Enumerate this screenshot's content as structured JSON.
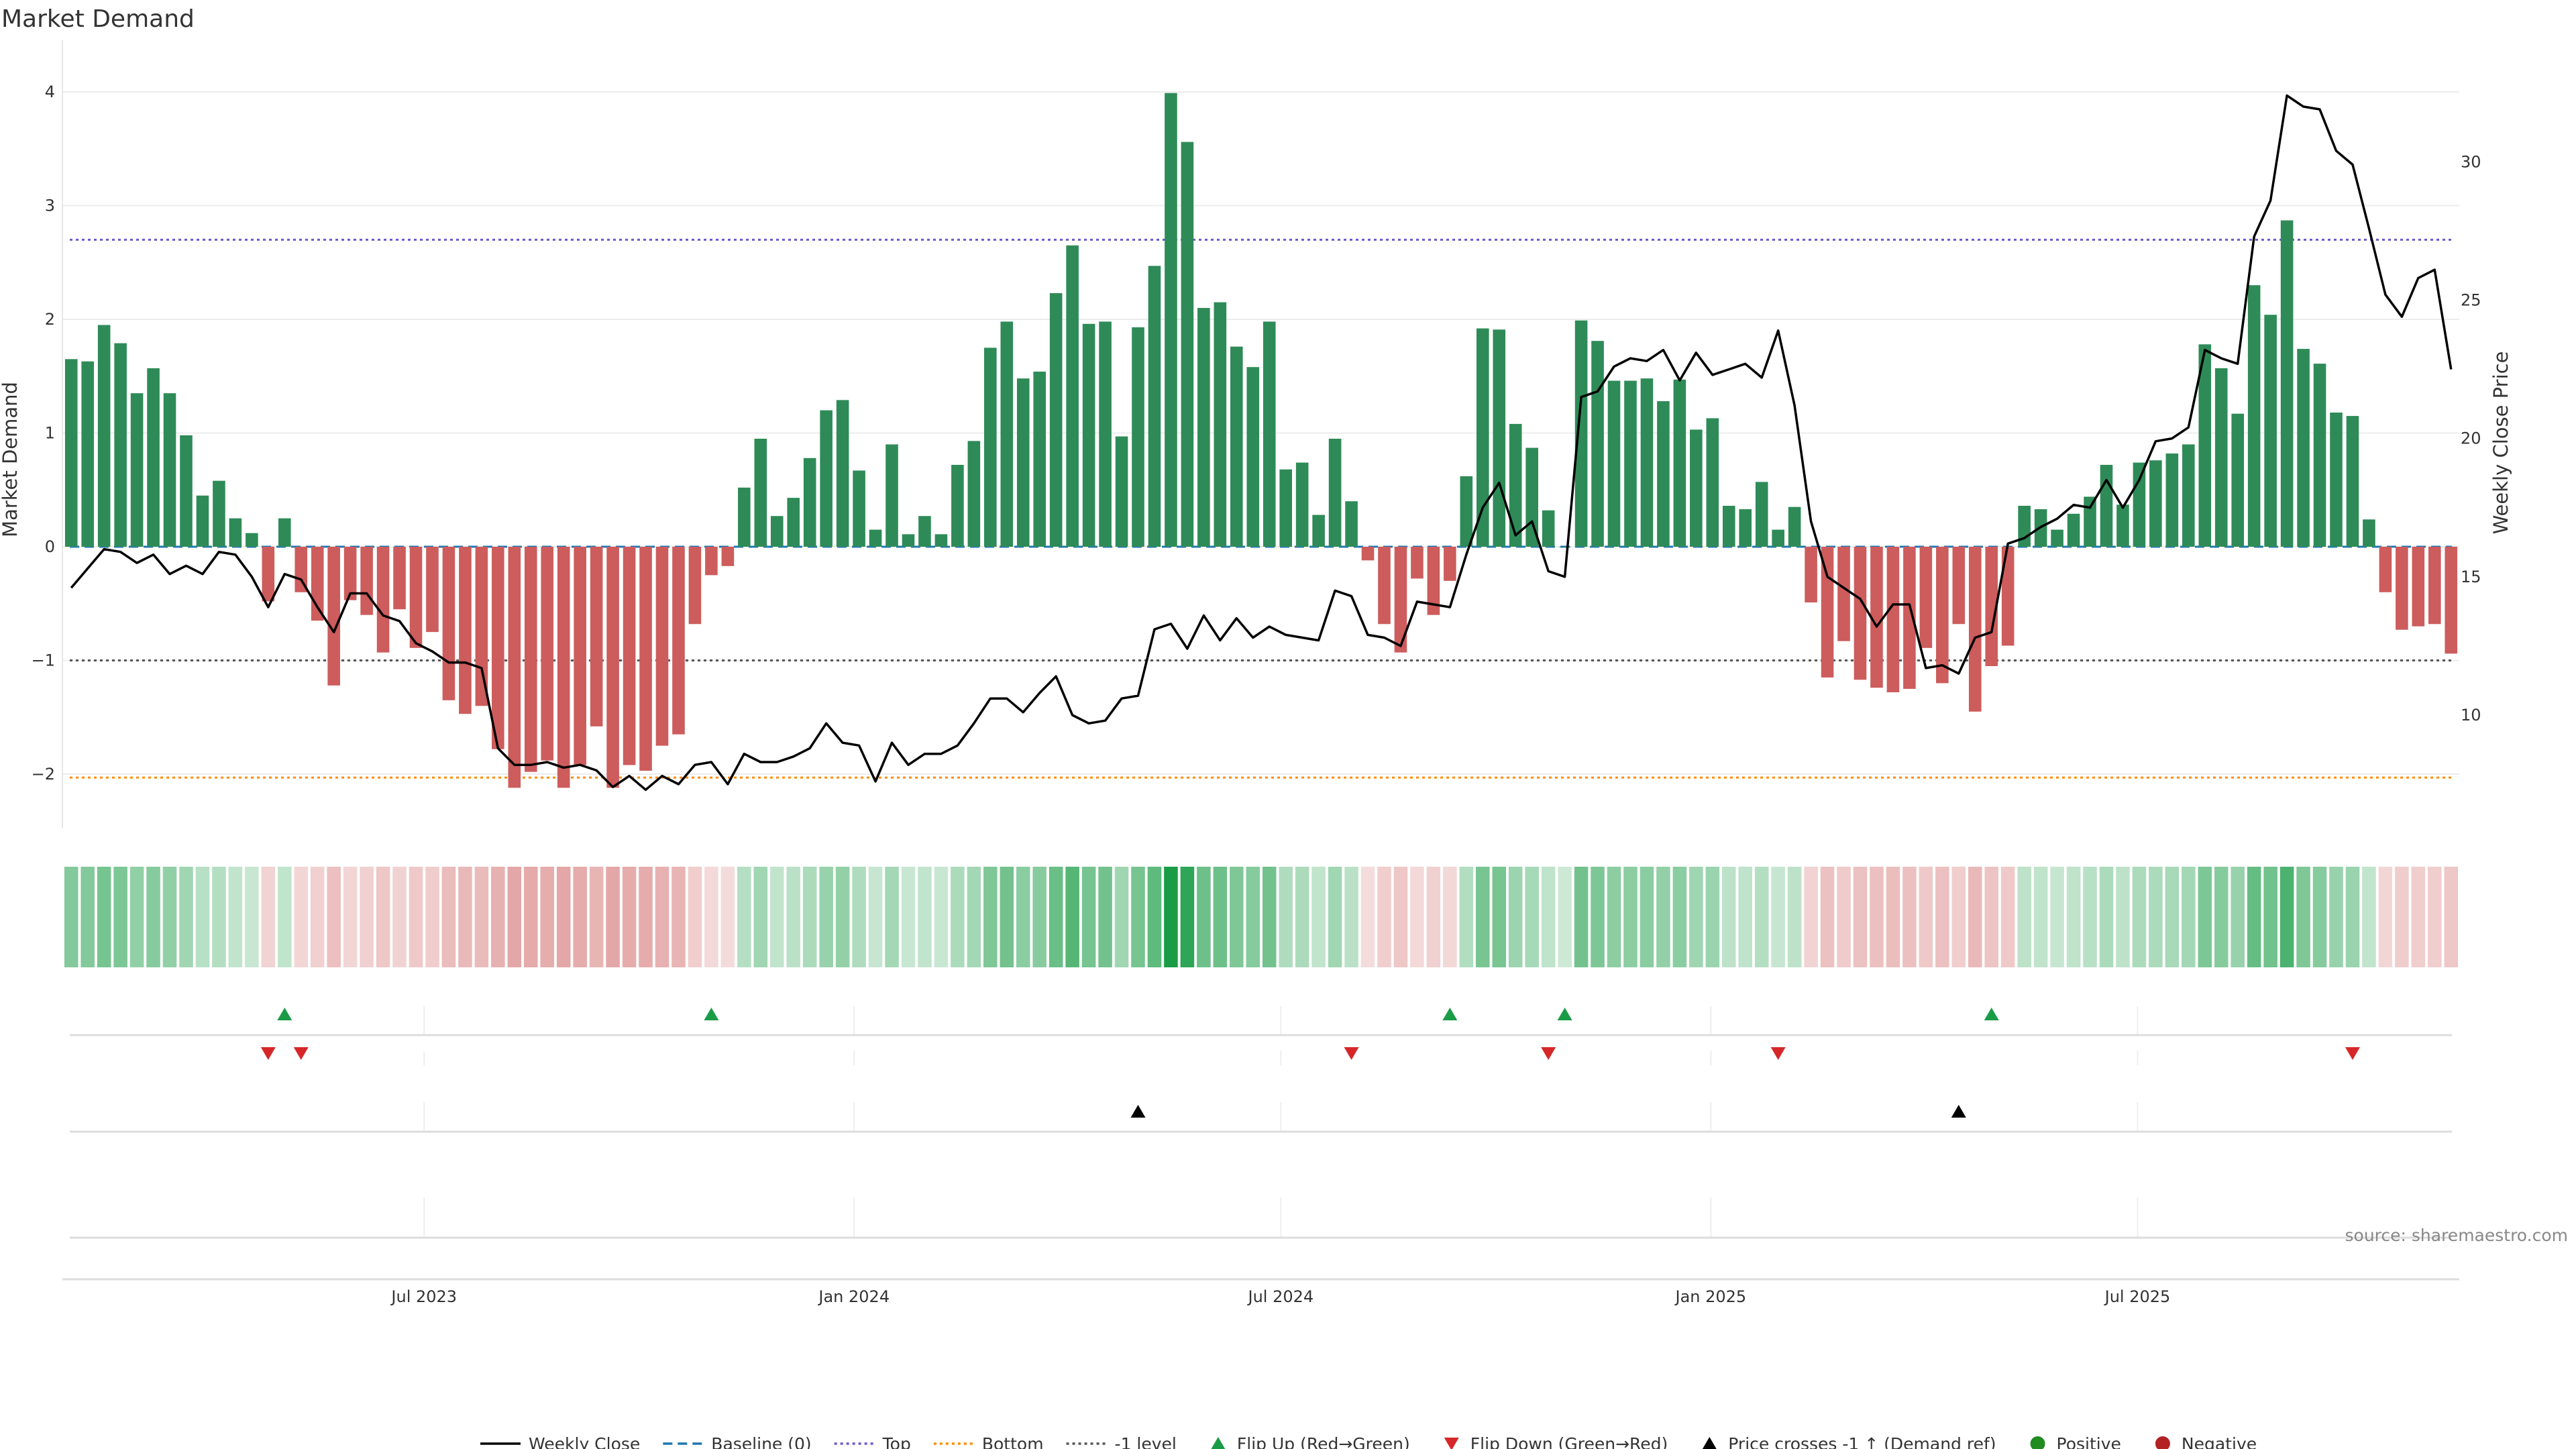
{
  "title": "Market Demand",
  "source": "source: sharemaestro.com",
  "colors": {
    "positive": "#2e8b57",
    "negative": "#cd5c5c",
    "close": "#000000",
    "baseline": "#1f77b4",
    "top": "#6a5acd",
    "bottom": "#ff8c00",
    "minus1": "#555555",
    "flip_up": "#1a9c46",
    "flip_down": "#d62728"
  },
  "chart_data": {
    "type": "bar",
    "title": "Market Demand",
    "ylabel": "Market Demand",
    "y2label": "Weekly Close Price",
    "ylim": [
      -2.5,
      4.1
    ],
    "y2lim": [
      5.9,
      32.7
    ],
    "yticks": [
      "4",
      "3",
      "2",
      "1",
      "0",
      "−1",
      "−2"
    ],
    "y2ticks": [
      "30",
      "25",
      "20",
      "15",
      "10"
    ],
    "xticks": [
      "Jul 2023",
      "Jan 2024",
      "Jul 2024",
      "Jan 2025",
      "Jul 2025"
    ],
    "xtick_index": [
      21.5,
      47.7,
      73.7,
      99.9,
      125.9
    ],
    "reference_lines": {
      "baseline": 0,
      "top": 2.7,
      "bottom": -2.03,
      "minus1": -1.0
    },
    "demand": [
      1.65,
      1.63,
      1.95,
      1.79,
      1.35,
      1.57,
      1.35,
      0.98,
      0.45,
      0.58,
      0.25,
      0.12,
      -0.48,
      0.25,
      -0.4,
      -0.65,
      -1.22,
      -0.47,
      -0.6,
      -0.93,
      -0.55,
      -0.89,
      -0.75,
      -1.35,
      -1.47,
      -1.4,
      -1.78,
      -2.12,
      -1.98,
      -1.88,
      -2.12,
      -1.92,
      -1.58,
      -2.12,
      -1.92,
      -1.97,
      -1.75,
      -1.65,
      -0.68,
      -0.25,
      -0.17,
      0.52,
      0.95,
      0.27,
      0.43,
      0.78,
      1.2,
      1.29,
      0.67,
      0.15,
      0.9,
      0.11,
      0.27,
      0.11,
      0.72,
      0.93,
      1.75,
      1.98,
      1.48,
      1.54,
      2.23,
      2.65,
      1.96,
      1.98,
      0.97,
      1.93,
      2.47,
      3.99,
      3.56,
      2.1,
      2.15,
      1.76,
      1.58,
      1.98,
      0.68,
      0.74,
      0.28,
      0.95,
      0.4,
      -0.12,
      -0.68,
      -0.93,
      -0.28,
      -0.6,
      -0.3,
      0.62,
      1.92,
      1.91,
      1.08,
      0.87,
      0.32,
      0.0,
      1.99,
      1.81,
      1.46,
      1.46,
      1.48,
      1.28,
      1.47,
      1.03,
      1.13,
      0.36,
      0.33,
      0.57,
      0.15,
      0.35,
      -0.49,
      -1.15,
      -0.83,
      -1.17,
      -1.24,
      -1.28,
      -1.25,
      -0.89,
      -1.2,
      -0.68,
      -1.45,
      -1.05,
      -0.87,
      0.36,
      0.33,
      0.15,
      0.29,
      0.44,
      0.72,
      0.37,
      0.74,
      0.76,
      0.82,
      0.9,
      1.78,
      1.57,
      1.17,
      2.3,
      2.04,
      2.87,
      1.74,
      1.61,
      1.18,
      1.15,
      0.24,
      -0.4,
      -0.73,
      -0.7,
      -0.68,
      -0.94
    ],
    "weekly_close": [
      14.6,
      15.3,
      16.0,
      15.9,
      15.5,
      15.8,
      15.1,
      15.4,
      15.1,
      15.9,
      15.8,
      15.0,
      13.9,
      15.1,
      14.9,
      13.9,
      13.0,
      14.4,
      14.4,
      13.6,
      13.4,
      12.6,
      12.3,
      11.9,
      11.9,
      11.7,
      8.8,
      8.2,
      8.2,
      8.3,
      8.1,
      8.2,
      8.0,
      7.4,
      7.8,
      7.3,
      7.8,
      7.5,
      8.2,
      8.3,
      7.5,
      8.6,
      8.3,
      8.3,
      8.5,
      8.8,
      9.7,
      9.0,
      8.9,
      7.6,
      9.0,
      8.2,
      8.6,
      8.6,
      8.9,
      9.7,
      10.6,
      10.6,
      10.1,
      10.8,
      11.4,
      10.0,
      9.7,
      9.8,
      10.6,
      10.7,
      13.1,
      13.3,
      12.4,
      13.6,
      12.7,
      13.5,
      12.8,
      13.2,
      12.9,
      12.8,
      12.7,
      14.5,
      14.3,
      12.9,
      12.8,
      12.5,
      14.1,
      14.0,
      13.9,
      15.8,
      17.5,
      18.4,
      16.5,
      17.0,
      15.2,
      15.0,
      21.5,
      21.7,
      22.6,
      22.9,
      22.8,
      23.2,
      22.1,
      23.1,
      22.3,
      22.5,
      22.7,
      22.2,
      23.9,
      21.2,
      17.0,
      15.0,
      14.6,
      14.2,
      13.2,
      14.0,
      14.0,
      11.7,
      11.8,
      11.5,
      12.8,
      13.0,
      16.2,
      16.4,
      16.8,
      17.1,
      17.6,
      17.5,
      18.5,
      17.5,
      18.5,
      19.9,
      20.0,
      20.4,
      23.2,
      22.9,
      22.7,
      27.3,
      28.6,
      32.4,
      32.0,
      31.9,
      30.4,
      29.9,
      27.6,
      25.2,
      24.4,
      25.8,
      26.1,
      22.5
    ],
    "flip_up_index": [
      13,
      39,
      84,
      91,
      117
    ],
    "flip_down_index": [
      12,
      14,
      78,
      90,
      104,
      139
    ],
    "price_cross_index": [
      65,
      115
    ]
  },
  "legend": [
    {
      "type": "line",
      "color": "#000000",
      "dash": "",
      "label": "Weekly Close"
    },
    {
      "type": "line",
      "color": "#1f77b4",
      "dash": "14,8",
      "label": "Baseline (0)"
    },
    {
      "type": "line",
      "color": "#6a5acd",
      "dash": "4,5",
      "label": "Top"
    },
    {
      "type": "line",
      "color": "#ff8c00",
      "dash": "4,5",
      "label": "Bottom"
    },
    {
      "type": "line",
      "color": "#555555",
      "dash": "4,5",
      "label": "-1 level"
    },
    {
      "type": "tri-up",
      "color": "#1a9c46",
      "label": "Flip Up (Red→Green)"
    },
    {
      "type": "tri-down",
      "color": "#d62728",
      "label": "Flip Down (Green→Red)"
    },
    {
      "type": "tri-up",
      "color": "#000000",
      "label": "Price crosses -1 ↑ (Demand ref)"
    },
    {
      "type": "dot",
      "color": "#228b22",
      "label": "Positive"
    },
    {
      "type": "dot",
      "color": "#b22222",
      "label": "Negative"
    }
  ]
}
